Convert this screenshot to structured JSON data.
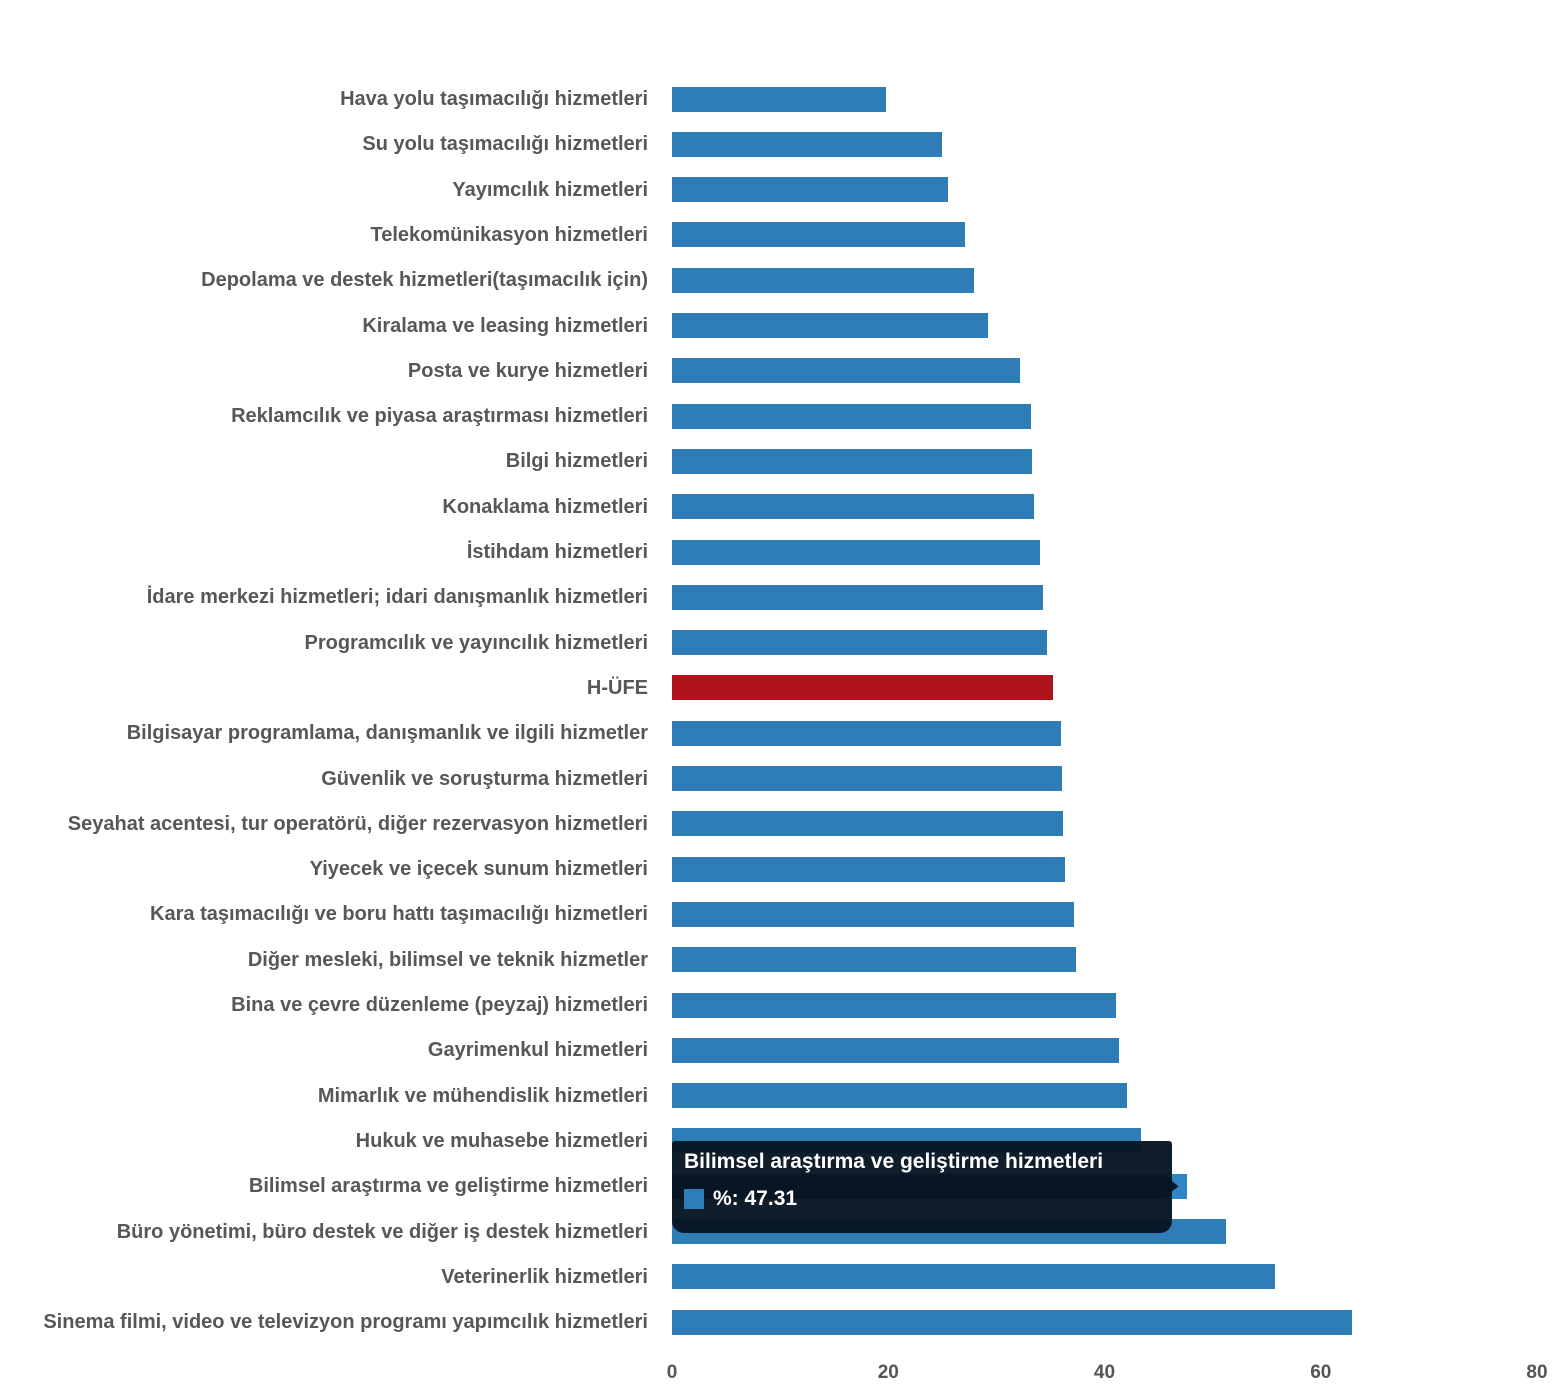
{
  "chart_data": {
    "type": "bar",
    "orientation": "horizontal",
    "title": "",
    "xlabel": "",
    "ylabel": "",
    "xlim": [
      0,
      80
    ],
    "x_ticks": [
      "0",
      "20",
      "40",
      "60",
      "80"
    ],
    "grid": false,
    "legend_position": "none",
    "series_name": "%",
    "categories": [
      "Hava yolu taşımacılığı hizmetleri",
      "Su yolu taşımacılığı hizmetleri",
      "Yayımcılık hizmetleri",
      "Telekomünikasyon hizmetleri",
      "Depolama ve destek hizmetleri(taşımacılık için)",
      "Kiralama ve leasing hizmetleri",
      "Posta ve kurye hizmetleri",
      "Reklamcılık ve piyasa araştırması hizmetleri",
      "Bilgi hizmetleri",
      "Konaklama hizmetleri",
      "İstihdam hizmetleri",
      "İdare merkezi hizmetleri; idari danışmanlık hizmetleri",
      "Programcılık ve yayıncılık hizmetleri",
      "H-ÜFE",
      "Bilgisayar programlama, danışmanlık ve ilgili hizmetler",
      "Güvenlik ve soruşturma hizmetleri",
      "Seyahat acentesi, tur operatörü, diğer rezervasyon hizmetleri",
      "Yiyecek ve içecek sunum hizmetleri",
      "Kara taşımacılığı ve boru hattı taşımacılığı hizmetleri",
      "Diğer mesleki, bilimsel ve teknik hizmetler",
      "Bina ve çevre düzenleme (peyzaj) hizmetleri",
      "Gayrimenkul hizmetleri",
      "Mimarlık ve mühendislik hizmetleri",
      "Hukuk ve muhasebe hizmetleri",
      "Bilimsel araştırma ve geliştirme hizmetleri",
      "Büro yönetimi, büro destek ve diğer iş destek hizmetleri",
      "Veterinerlik hizmetleri",
      "Sinema filmi, video ve televizyon programı yapımcılık hizmetleri"
    ],
    "values": [
      19.8,
      25.0,
      25.5,
      27.1,
      27.9,
      29.2,
      32.2,
      33.2,
      33.3,
      33.5,
      34.0,
      34.3,
      34.7,
      35.2,
      36.0,
      36.1,
      36.2,
      36.3,
      37.2,
      37.4,
      41.1,
      41.3,
      42.1,
      43.4,
      47.31,
      51.2,
      55.8,
      62.9
    ],
    "emphasis_category": "H-ÜFE",
    "hovered_category": "Bilimsel araştırma ve geliştirme hizmetleri",
    "hovered_value": 47.31
  },
  "tooltip": {
    "title": "Bilimsel araştırma ve geliştirme hizmetleri",
    "value_text": "%: 47.31"
  },
  "colors": {
    "bar_blue": "#2f7db7",
    "bar_red": "#b0121b",
    "hover_dark": "#0c1b29",
    "arrow_blue": "#2f86c4",
    "label_gray": "#575757",
    "tick_gray": "#555555",
    "tooltip_bg": "#081624",
    "background": "#ffffff"
  }
}
